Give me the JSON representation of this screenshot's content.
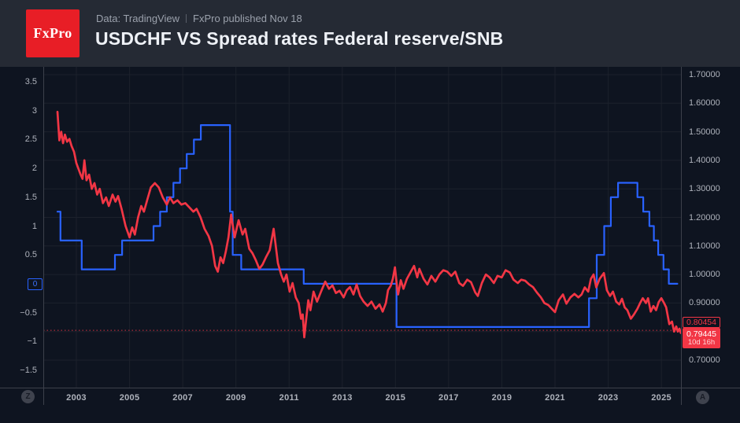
{
  "header": {
    "logo_text": "FxPro",
    "subtitle_left": "Data: TradingView",
    "subtitle_right": "FxPro published Nov 18",
    "title": "USDCHF VS Spread rates Federal reserve/SNB"
  },
  "badges": {
    "bottom_left": "Z",
    "bottom_right": "A"
  },
  "colors": {
    "accent_blue": "#2962ff",
    "accent_red": "#f23645",
    "header_bg": "#252a34",
    "chart_bg": "#0e1420",
    "grid": "#1c212c",
    "axis_text": "#aeb2bb",
    "axis_line": "#3c404b"
  },
  "chart_data": {
    "type": "line",
    "title": "USDCHF VS Spread rates Federal reserve/SNB",
    "legend_position": "none",
    "grid": true,
    "x_axis": {
      "range": [
        2001.756,
        2025.737
      ],
      "tick_years": [
        2003,
        2005,
        2007,
        2009,
        2011,
        2013,
        2015,
        2017,
        2019,
        2021,
        2023,
        2025
      ]
    },
    "left_axis": {
      "min": -1.8,
      "max": 3.76,
      "ticks": [
        {
          "v": 3.5,
          "label": "3.5"
        },
        {
          "v": 3,
          "label": "3"
        },
        {
          "v": 2.5,
          "label": "2.5"
        },
        {
          "v": 2,
          "label": "2"
        },
        {
          "v": 1.5,
          "label": "1.5"
        },
        {
          "v": 1,
          "label": "1"
        },
        {
          "v": 0.5,
          "label": "0.5"
        },
        {
          "v": -0.5,
          "label": "−0.5"
        },
        {
          "v": -1,
          "label": "−1"
        },
        {
          "v": -1.5,
          "label": "−1.5"
        }
      ],
      "zero_badge_label": "0",
      "zero_badge_value": 0
    },
    "right_axis": {
      "min": 0.6037,
      "max": 1.7275,
      "ticks": [
        {
          "v": 1.7,
          "label": "1.70000"
        },
        {
          "v": 1.6,
          "label": "1.60000"
        },
        {
          "v": 1.5,
          "label": "1.50000"
        },
        {
          "v": 1.4,
          "label": "1.40000"
        },
        {
          "v": 1.3,
          "label": "1.30000"
        },
        {
          "v": 1.2,
          "label": "1.20000"
        },
        {
          "v": 1.1,
          "label": "1.10000"
        },
        {
          "v": 1.0,
          "label": "1.00000"
        },
        {
          "v": 0.9,
          "label": "0.90000"
        },
        {
          "v": 0.8,
          "label": ""
        },
        {
          "v": 0.7,
          "label": "0.70000"
        }
      ],
      "price_line": {
        "value": 0.80454,
        "label": "0.80454"
      },
      "last_price": {
        "value": 0.79445,
        "label": "0.79445",
        "countdown": "10d 16h"
      }
    },
    "series": [
      {
        "name": "Spread rates Federal reserve/SNB",
        "color": "#2962ff",
        "axis": "left",
        "style": "step",
        "points": [
          [
            2002.29,
            1.25
          ],
          [
            2002.4,
            0.75
          ],
          [
            2003.2,
            0.25
          ],
          [
            2004.45,
            0.5
          ],
          [
            2004.72,
            0.75
          ],
          [
            2005.9,
            1.0
          ],
          [
            2006.15,
            1.25
          ],
          [
            2006.4,
            1.5
          ],
          [
            2006.65,
            1.75
          ],
          [
            2006.9,
            2.0
          ],
          [
            2007.15,
            2.25
          ],
          [
            2007.42,
            2.5
          ],
          [
            2007.68,
            2.75
          ],
          [
            2008.78,
            1.25
          ],
          [
            2008.88,
            0.5
          ],
          [
            2009.2,
            0.25
          ],
          [
            2011.55,
            0
          ],
          [
            2015.04,
            -0.75
          ],
          [
            2022.28,
            -0.25
          ],
          [
            2022.57,
            0.5
          ],
          [
            2022.85,
            1.0
          ],
          [
            2023.1,
            1.5
          ],
          [
            2023.37,
            1.75
          ],
          [
            2024.1,
            1.5
          ],
          [
            2024.32,
            1.25
          ],
          [
            2024.55,
            1.0
          ],
          [
            2024.72,
            0.75
          ],
          [
            2024.88,
            0.5
          ],
          [
            2025.08,
            0.25
          ],
          [
            2025.28,
            0
          ],
          [
            2025.6,
            0
          ]
        ]
      },
      {
        "name": "USDCHF",
        "color": "#f23645",
        "axis": "right",
        "style": "line",
        "points": [
          [
            2002.29,
            1.57
          ],
          [
            2002.36,
            1.47
          ],
          [
            2002.43,
            1.5
          ],
          [
            2002.5,
            1.46
          ],
          [
            2002.57,
            1.49
          ],
          [
            2002.65,
            1.465
          ],
          [
            2002.74,
            1.475
          ],
          [
            2002.82,
            1.45
          ],
          [
            2002.91,
            1.43
          ],
          [
            2003.0,
            1.39
          ],
          [
            2003.08,
            1.37
          ],
          [
            2003.16,
            1.35
          ],
          [
            2003.23,
            1.335
          ],
          [
            2003.3,
            1.4
          ],
          [
            2003.38,
            1.33
          ],
          [
            2003.48,
            1.35
          ],
          [
            2003.58,
            1.3
          ],
          [
            2003.68,
            1.32
          ],
          [
            2003.78,
            1.28
          ],
          [
            2003.88,
            1.3
          ],
          [
            2004.0,
            1.25
          ],
          [
            2004.12,
            1.27
          ],
          [
            2004.22,
            1.24
          ],
          [
            2004.36,
            1.28
          ],
          [
            2004.47,
            1.255
          ],
          [
            2004.57,
            1.275
          ],
          [
            2004.7,
            1.23
          ],
          [
            2004.85,
            1.17
          ],
          [
            2005.0,
            1.13
          ],
          [
            2005.1,
            1.165
          ],
          [
            2005.2,
            1.14
          ],
          [
            2005.32,
            1.2
          ],
          [
            2005.44,
            1.24
          ],
          [
            2005.54,
            1.22
          ],
          [
            2005.66,
            1.26
          ],
          [
            2005.8,
            1.305
          ],
          [
            2005.95,
            1.32
          ],
          [
            2006.1,
            1.305
          ],
          [
            2006.25,
            1.27
          ],
          [
            2006.4,
            1.245
          ],
          [
            2006.52,
            1.27
          ],
          [
            2006.65,
            1.25
          ],
          [
            2006.8,
            1.26
          ],
          [
            2006.95,
            1.245
          ],
          [
            2007.1,
            1.25
          ],
          [
            2007.25,
            1.235
          ],
          [
            2007.4,
            1.22
          ],
          [
            2007.52,
            1.23
          ],
          [
            2007.67,
            1.2
          ],
          [
            2007.82,
            1.16
          ],
          [
            2007.97,
            1.135
          ],
          [
            2008.1,
            1.1
          ],
          [
            2008.22,
            1.03
          ],
          [
            2008.32,
            1.01
          ],
          [
            2008.42,
            1.06
          ],
          [
            2008.52,
            1.04
          ],
          [
            2008.62,
            1.08
          ],
          [
            2008.72,
            1.13
          ],
          [
            2008.82,
            1.21
          ],
          [
            2008.95,
            1.13
          ],
          [
            2009.1,
            1.19
          ],
          [
            2009.25,
            1.14
          ],
          [
            2009.35,
            1.16
          ],
          [
            2009.5,
            1.09
          ],
          [
            2009.62,
            1.075
          ],
          [
            2009.75,
            1.05
          ],
          [
            2009.88,
            1.02
          ],
          [
            2010.0,
            1.035
          ],
          [
            2010.13,
            1.06
          ],
          [
            2010.27,
            1.085
          ],
          [
            2010.42,
            1.16
          ],
          [
            2010.58,
            1.04
          ],
          [
            2010.7,
            1.0
          ],
          [
            2010.8,
            0.975
          ],
          [
            2010.9,
            1.0
          ],
          [
            2011.02,
            0.94
          ],
          [
            2011.13,
            0.97
          ],
          [
            2011.25,
            0.92
          ],
          [
            2011.36,
            0.9
          ],
          [
            2011.45,
            0.845
          ],
          [
            2011.51,
            0.86
          ],
          [
            2011.57,
            0.78
          ],
          [
            2011.65,
            0.85
          ],
          [
            2011.72,
            0.91
          ],
          [
            2011.8,
            0.875
          ],
          [
            2011.92,
            0.94
          ],
          [
            2012.05,
            0.905
          ],
          [
            2012.2,
            0.94
          ],
          [
            2012.36,
            0.975
          ],
          [
            2012.5,
            0.95
          ],
          [
            2012.63,
            0.962
          ],
          [
            2012.76,
            0.935
          ],
          [
            2012.9,
            0.943
          ],
          [
            2013.05,
            0.92
          ],
          [
            2013.17,
            0.945
          ],
          [
            2013.29,
            0.956
          ],
          [
            2013.42,
            0.93
          ],
          [
            2013.54,
            0.965
          ],
          [
            2013.67,
            0.925
          ],
          [
            2013.8,
            0.905
          ],
          [
            2013.95,
            0.89
          ],
          [
            2014.1,
            0.905
          ],
          [
            2014.25,
            0.88
          ],
          [
            2014.4,
            0.895
          ],
          [
            2014.52,
            0.87
          ],
          [
            2014.64,
            0.9
          ],
          [
            2014.72,
            0.945
          ],
          [
            2014.82,
            0.96
          ],
          [
            2014.9,
            0.985
          ],
          [
            2014.98,
            1.025
          ],
          [
            2015.06,
            0.955
          ],
          [
            2015.1,
            0.93
          ],
          [
            2015.2,
            0.98
          ],
          [
            2015.3,
            0.95
          ],
          [
            2015.43,
            0.985
          ],
          [
            2015.58,
            1.01
          ],
          [
            2015.7,
            1.03
          ],
          [
            2015.82,
            0.99
          ],
          [
            2015.9,
            1.02
          ],
          [
            2016.06,
            0.985
          ],
          [
            2016.2,
            0.965
          ],
          [
            2016.35,
            0.995
          ],
          [
            2016.5,
            0.975
          ],
          [
            2016.65,
            1.0
          ],
          [
            2016.8,
            1.015
          ],
          [
            2016.95,
            1.01
          ],
          [
            2017.1,
            0.995
          ],
          [
            2017.25,
            1.01
          ],
          [
            2017.4,
            0.97
          ],
          [
            2017.54,
            0.96
          ],
          [
            2017.7,
            0.982
          ],
          [
            2017.84,
            0.973
          ],
          [
            2018.0,
            0.937
          ],
          [
            2018.1,
            0.925
          ],
          [
            2018.25,
            0.97
          ],
          [
            2018.4,
            1.0
          ],
          [
            2018.54,
            0.99
          ],
          [
            2018.7,
            0.97
          ],
          [
            2018.84,
            0.995
          ],
          [
            2019.0,
            0.99
          ],
          [
            2019.14,
            1.015
          ],
          [
            2019.3,
            1.007
          ],
          [
            2019.44,
            0.982
          ],
          [
            2019.6,
            0.97
          ],
          [
            2019.73,
            0.982
          ],
          [
            2019.88,
            0.978
          ],
          [
            2020.03,
            0.965
          ],
          [
            2020.17,
            0.956
          ],
          [
            2020.32,
            0.937
          ],
          [
            2020.47,
            0.92
          ],
          [
            2020.6,
            0.9
          ],
          [
            2020.75,
            0.893
          ],
          [
            2020.9,
            0.878
          ],
          [
            2021.0,
            0.868
          ],
          [
            2021.14,
            0.91
          ],
          [
            2021.3,
            0.93
          ],
          [
            2021.43,
            0.898
          ],
          [
            2021.58,
            0.92
          ],
          [
            2021.73,
            0.932
          ],
          [
            2021.88,
            0.92
          ],
          [
            2022.0,
            0.93
          ],
          [
            2022.12,
            0.955
          ],
          [
            2022.25,
            0.94
          ],
          [
            2022.35,
            0.985
          ],
          [
            2022.45,
            1.0
          ],
          [
            2022.55,
            0.955
          ],
          [
            2022.68,
            0.985
          ],
          [
            2022.84,
            1.005
          ],
          [
            2022.95,
            0.945
          ],
          [
            2023.07,
            0.925
          ],
          [
            2023.18,
            0.94
          ],
          [
            2023.3,
            0.905
          ],
          [
            2023.42,
            0.895
          ],
          [
            2023.52,
            0.915
          ],
          [
            2023.62,
            0.885
          ],
          [
            2023.72,
            0.875
          ],
          [
            2023.85,
            0.845
          ],
          [
            2023.97,
            0.86
          ],
          [
            2024.1,
            0.88
          ],
          [
            2024.2,
            0.9
          ],
          [
            2024.3,
            0.917
          ],
          [
            2024.42,
            0.9
          ],
          [
            2024.5,
            0.917
          ],
          [
            2024.6,
            0.87
          ],
          [
            2024.7,
            0.89
          ],
          [
            2024.8,
            0.875
          ],
          [
            2024.9,
            0.903
          ],
          [
            2025.0,
            0.917
          ],
          [
            2025.1,
            0.9
          ],
          [
            2025.18,
            0.885
          ],
          [
            2025.3,
            0.826
          ],
          [
            2025.4,
            0.835
          ],
          [
            2025.48,
            0.8
          ],
          [
            2025.56,
            0.818
          ],
          [
            2025.62,
            0.8
          ],
          [
            2025.68,
            0.81
          ],
          [
            2025.73,
            0.795
          ],
          [
            2025.78,
            0.794
          ]
        ]
      }
    ]
  }
}
